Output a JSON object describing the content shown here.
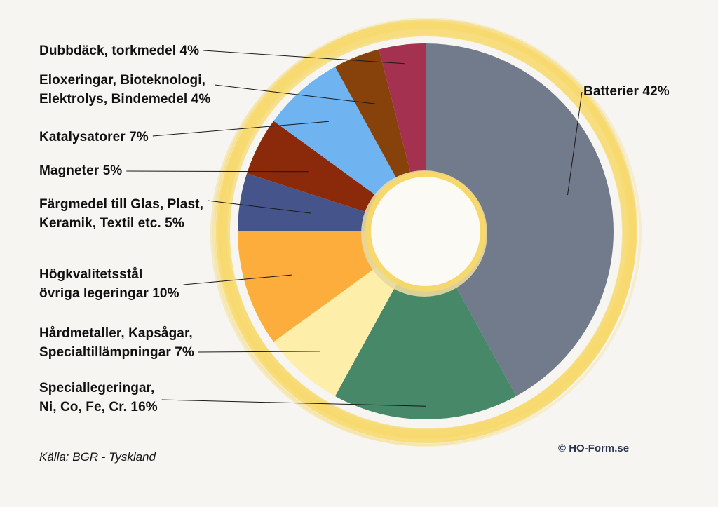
{
  "chart_data": {
    "type": "pie",
    "donut": true,
    "slices": [
      {
        "label_lines": [
          "Batterier 42%"
        ],
        "value": 42,
        "color": "#717b8b"
      },
      {
        "label_lines": [
          "Speciallegeringar,",
          "Ni, Co, Fe, Cr. 16%"
        ],
        "value": 16,
        "color": "#468868"
      },
      {
        "label_lines": [
          "Hårdmetaller, Kapsågar,",
          "Specialtillämpningar 7%"
        ],
        "value": 7,
        "color": "#fdeeaa"
      },
      {
        "label_lines": [
          "Högkvalitetsstål",
          "övriga legeringar 10%"
        ],
        "value": 10,
        "color": "#fdad3c"
      },
      {
        "label_lines": [
          "Färgmedel till Glas, Plast,",
          "Keramik, Textil etc. 5%"
        ],
        "value": 5,
        "color": "#45558c"
      },
      {
        "label_lines": [
          "Magneter 5%"
        ],
        "value": 5,
        "color": "#8a2a0a"
      },
      {
        "label_lines": [
          "Katalysatorer 7%"
        ],
        "value": 7,
        "color": "#6fb4f0"
      },
      {
        "label_lines": [
          "Eloxeringar, Bioteknologi,",
          "Elektrolys, Bindemedel 4%"
        ],
        "value": 4,
        "color": "#87420b"
      },
      {
        "label_lines": [
          "Dubbdäck, torkmedel 4%"
        ],
        "value": 4,
        "color": "#a3314f"
      }
    ],
    "ring_color": "#f7d86a"
  },
  "source": "Källa: BGR - Tyskland",
  "copyright": "© HO-Form.se"
}
